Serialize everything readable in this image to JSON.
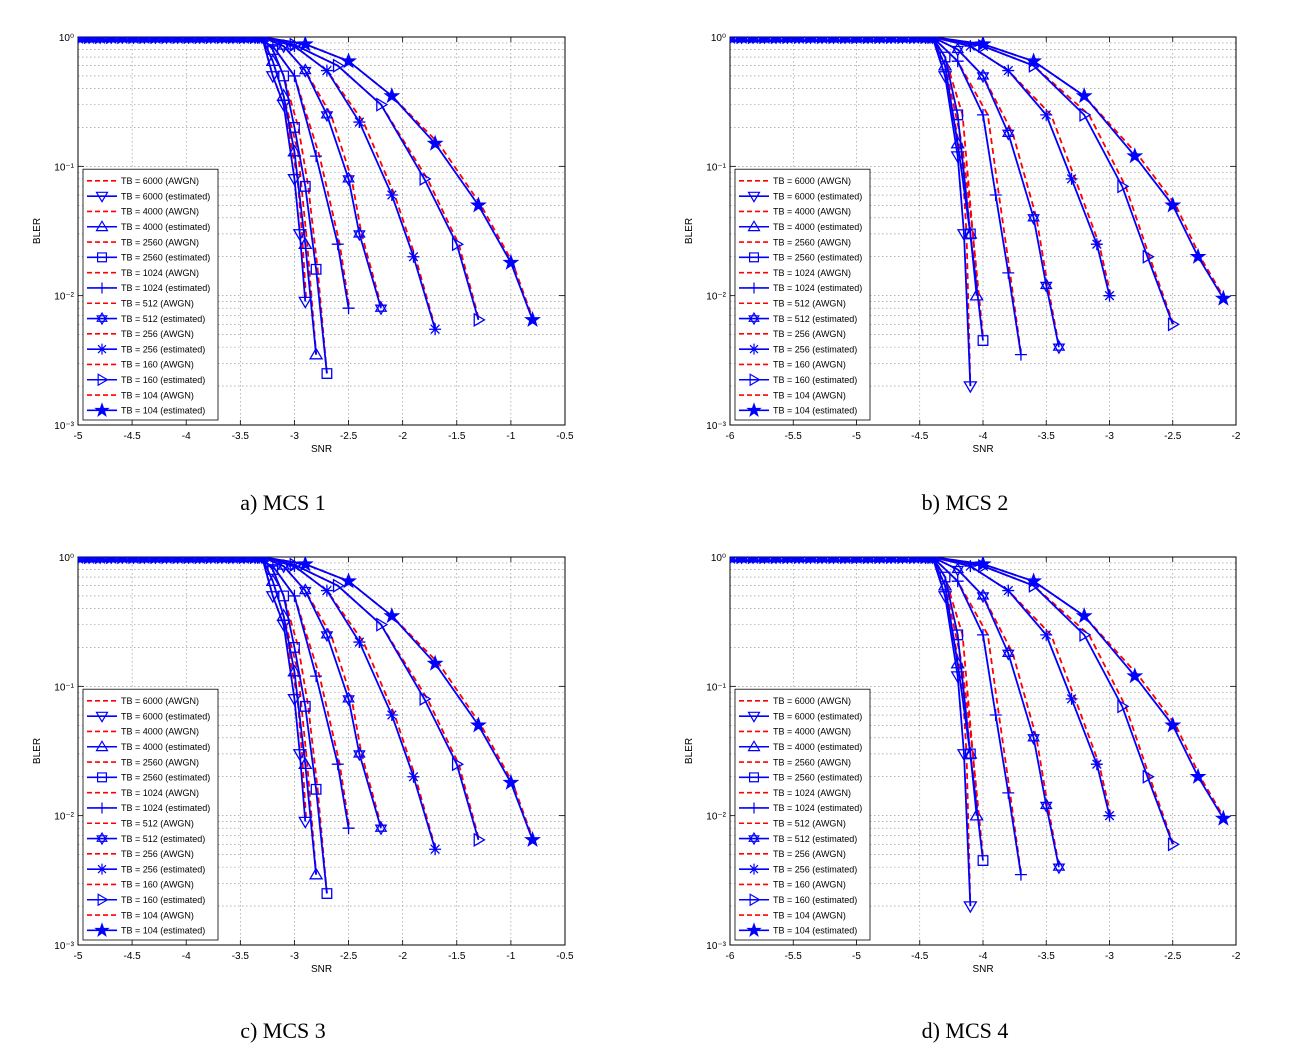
{
  "chart_data": [
    {
      "type": "line",
      "caption": "a) MCS 1",
      "xlabel": "SNR",
      "ylabel": "BLER",
      "yscale": "log",
      "xlim": [
        -5,
        -0.5
      ],
      "ylim": [
        0.001,
        1
      ],
      "xticks": [
        -5,
        -4.5,
        -4,
        -3.5,
        -3,
        -2.5,
        -2,
        -1.5,
        -1,
        -0.5
      ],
      "xtick_labels": [
        "-5",
        "-4.5",
        "-4",
        "-3.5",
        "-3",
        "-2.5",
        "-2",
        "-1.5",
        "-1",
        "-0.5"
      ],
      "ytick_labels": [
        "10⁻³",
        "10⁻²",
        "10⁻¹",
        "10⁰"
      ],
      "grid": true,
      "legend_position": "lower-left",
      "legend": [
        "TB = 6000 (AWGN)",
        "TB = 6000 (estimated)",
        "TB = 4000 (AWGN)",
        "TB = 4000 (estimated)",
        "TB = 2560 (AWGN)",
        "TB = 2560 (estimated)",
        "TB = 1024 (AWGN)",
        "TB = 1024 (estimated)",
        "TB = 512 (AWGN)",
        "TB = 512 (estimated)",
        "TB = 256 (AWGN)",
        "TB = 256 (estimated)",
        "TB = 160 (AWGN)",
        "TB = 160 (estimated)",
        "TB = 104 (AWGN)",
        "TB = 104 (estimated)"
      ],
      "series": [
        {
          "tb": "6000",
          "marker": "tri-down",
          "x": [
            -3.3,
            -3.2,
            -3.1,
            -3.0,
            -2.95,
            -2.9
          ],
          "y": [
            1.0,
            0.5,
            0.3,
            0.08,
            0.03,
            0.009
          ]
        },
        {
          "tb": "4000",
          "marker": "tri-up",
          "x": [
            -3.3,
            -3.2,
            -3.1,
            -3.0,
            -2.9,
            -2.8
          ],
          "y": [
            1.0,
            0.65,
            0.35,
            0.13,
            0.025,
            0.0035
          ]
        },
        {
          "tb": "2560",
          "marker": "square",
          "x": [
            -3.3,
            -3.2,
            -3.1,
            -3.0,
            -2.9,
            -2.8,
            -2.7
          ],
          "y": [
            1.0,
            0.8,
            0.5,
            0.2,
            0.07,
            0.016,
            0.0025
          ]
        },
        {
          "tb": "1024",
          "marker": "plus",
          "x": [
            -3.4,
            -3.2,
            -3.0,
            -2.8,
            -2.6,
            -2.5
          ],
          "y": [
            1.0,
            0.85,
            0.5,
            0.12,
            0.025,
            0.008
          ]
        },
        {
          "tb": "512",
          "marker": "hexstar",
          "x": [
            -3.3,
            -3.1,
            -2.9,
            -2.7,
            -2.5,
            -2.4,
            -2.2
          ],
          "y": [
            1.0,
            0.85,
            0.55,
            0.25,
            0.08,
            0.03,
            0.008
          ]
        },
        {
          "tb": "256",
          "marker": "asterisk",
          "x": [
            -3.3,
            -3.0,
            -2.7,
            -2.4,
            -2.1,
            -1.9,
            -1.7
          ],
          "y": [
            1.0,
            0.85,
            0.55,
            0.22,
            0.06,
            0.02,
            0.0055
          ]
        },
        {
          "tb": "160",
          "marker": "tri-right",
          "x": [
            -3.3,
            -3.0,
            -2.6,
            -2.2,
            -1.8,
            -1.5,
            -1.3
          ],
          "y": [
            1.0,
            0.87,
            0.6,
            0.3,
            0.08,
            0.025,
            0.0065
          ]
        },
        {
          "tb": "104",
          "marker": "star",
          "x": [
            -3.3,
            -2.9,
            -2.5,
            -2.1,
            -1.7,
            -1.3,
            -1.0,
            -0.8
          ],
          "y": [
            1.0,
            0.88,
            0.65,
            0.35,
            0.15,
            0.05,
            0.018,
            0.0065
          ]
        }
      ]
    },
    {
      "type": "line",
      "caption": "b) MCS 2",
      "xlabel": "SNR",
      "ylabel": "BLER",
      "yscale": "log",
      "xlim": [
        -6,
        -2
      ],
      "ylim": [
        0.001,
        1
      ],
      "xticks": [
        -6,
        -5.5,
        -5,
        -4.5,
        -4,
        -3.5,
        -3,
        -2.5,
        -2
      ],
      "xtick_labels": [
        "-6",
        "-5.5",
        "-5",
        "-4.5",
        "-4",
        "-3.5",
        "-3",
        "-2.5",
        "-2"
      ],
      "ytick_labels": [
        "10⁻³",
        "10⁻²",
        "10⁻¹",
        "10⁰"
      ],
      "grid": true,
      "legend_position": "lower-left",
      "legend": [
        "TB = 6000 (AWGN)",
        "TB = 6000 (estimated)",
        "TB = 4000 (AWGN)",
        "TB = 4000 (estimated)",
        "TB = 2560 (AWGN)",
        "TB = 2560 (estimated)",
        "TB = 1024 (AWGN)",
        "TB = 1024 (estimated)",
        "TB = 512 (AWGN)",
        "TB = 512 (estimated)",
        "TB = 256 (AWGN)",
        "TB = 256 (estimated)",
        "TB = 160 (AWGN)",
        "TB = 160 (estimated)",
        "TB = 104 (AWGN)",
        "TB = 104 (estimated)"
      ],
      "series": [
        {
          "tb": "6000",
          "marker": "tri-down",
          "x": [
            -4.4,
            -4.3,
            -4.2,
            -4.15,
            -4.1
          ],
          "y": [
            1.0,
            0.5,
            0.12,
            0.03,
            0.002
          ]
        },
        {
          "tb": "4000",
          "marker": "tri-up",
          "x": [
            -4.4,
            -4.3,
            -4.2,
            -4.1,
            -4.05
          ],
          "y": [
            1.0,
            0.6,
            0.15,
            0.03,
            0.01
          ]
        },
        {
          "tb": "2560",
          "marker": "square",
          "x": [
            -4.4,
            -4.3,
            -4.2,
            -4.1,
            -4.0
          ],
          "y": [
            1.0,
            0.7,
            0.25,
            0.03,
            0.0045
          ]
        },
        {
          "tb": "1024",
          "marker": "plus",
          "x": [
            -4.4,
            -4.2,
            -4.0,
            -3.9,
            -3.8,
            -3.7
          ],
          "y": [
            1.0,
            0.65,
            0.25,
            0.06,
            0.015,
            0.0035
          ]
        },
        {
          "tb": "512",
          "marker": "hexstar",
          "x": [
            -4.4,
            -4.2,
            -4.0,
            -3.8,
            -3.6,
            -3.5,
            -3.4
          ],
          "y": [
            1.0,
            0.8,
            0.5,
            0.18,
            0.04,
            0.012,
            0.004
          ]
        },
        {
          "tb": "256",
          "marker": "asterisk",
          "x": [
            -4.4,
            -4.1,
            -3.8,
            -3.5,
            -3.3,
            -3.1,
            -3.0
          ],
          "y": [
            1.0,
            0.85,
            0.55,
            0.25,
            0.08,
            0.025,
            0.01
          ]
        },
        {
          "tb": "160",
          "marker": "tri-right",
          "x": [
            -4.4,
            -4.0,
            -3.6,
            -3.2,
            -2.9,
            -2.7,
            -2.5
          ],
          "y": [
            1.0,
            0.85,
            0.6,
            0.25,
            0.07,
            0.02,
            0.006
          ]
        },
        {
          "tb": "104",
          "marker": "star",
          "x": [
            -4.4,
            -4.0,
            -3.6,
            -3.2,
            -2.8,
            -2.5,
            -2.3,
            -2.1
          ],
          "y": [
            1.0,
            0.88,
            0.65,
            0.35,
            0.12,
            0.05,
            0.02,
            0.0095
          ]
        }
      ]
    },
    {
      "type": "line",
      "caption": "c) MCS 3",
      "xlabel": "SNR",
      "ylabel": "BLER",
      "yscale": "log",
      "xlim": [
        -5,
        -0.5
      ],
      "ylim": [
        0.001,
        1
      ],
      "xticks": [
        -5,
        -4.5,
        -4,
        -3.5,
        -3,
        -2.5,
        -2,
        -1.5,
        -1,
        -0.5
      ],
      "xtick_labels": [
        "-5",
        "-4.5",
        "-4",
        "-3.5",
        "-3",
        "-2.5",
        "-2",
        "-1.5",
        "-1",
        "-0.5"
      ],
      "ytick_labels": [
        "10⁻³",
        "10⁻²",
        "10⁻¹",
        "10⁰"
      ],
      "grid": true,
      "legend_position": "lower-left",
      "legend": [
        "TB = 6000 (AWGN)",
        "TB = 6000 (estimated)",
        "TB = 4000 (AWGN)",
        "TB = 4000 (estimated)",
        "TB = 2560 (AWGN)",
        "TB = 2560 (estimated)",
        "TB = 1024 (AWGN)",
        "TB = 1024 (estimated)",
        "TB = 512 (AWGN)",
        "TB = 512 (estimated)",
        "TB = 256 (AWGN)",
        "TB = 256 (estimated)",
        "TB = 160 (AWGN)",
        "TB = 160 (estimated)",
        "TB = 104 (AWGN)",
        "TB = 104 (estimated)"
      ],
      "series": [
        {
          "tb": "6000",
          "marker": "tri-down",
          "x": [
            -3.3,
            -3.2,
            -3.1,
            -3.0,
            -2.95,
            -2.9
          ],
          "y": [
            1.0,
            0.5,
            0.3,
            0.08,
            0.03,
            0.009
          ]
        },
        {
          "tb": "4000",
          "marker": "tri-up",
          "x": [
            -3.3,
            -3.2,
            -3.1,
            -3.0,
            -2.9,
            -2.8
          ],
          "y": [
            1.0,
            0.65,
            0.35,
            0.13,
            0.025,
            0.0035
          ]
        },
        {
          "tb": "2560",
          "marker": "square",
          "x": [
            -3.3,
            -3.2,
            -3.1,
            -3.0,
            -2.9,
            -2.8,
            -2.7
          ],
          "y": [
            1.0,
            0.8,
            0.5,
            0.2,
            0.07,
            0.016,
            0.0025
          ]
        },
        {
          "tb": "1024",
          "marker": "plus",
          "x": [
            -3.4,
            -3.2,
            -3.0,
            -2.8,
            -2.6,
            -2.5
          ],
          "y": [
            1.0,
            0.85,
            0.5,
            0.12,
            0.025,
            0.008
          ]
        },
        {
          "tb": "512",
          "marker": "hexstar",
          "x": [
            -3.3,
            -3.1,
            -2.9,
            -2.7,
            -2.5,
            -2.4,
            -2.2
          ],
          "y": [
            1.0,
            0.85,
            0.55,
            0.25,
            0.08,
            0.03,
            0.008
          ]
        },
        {
          "tb": "256",
          "marker": "asterisk",
          "x": [
            -3.3,
            -3.0,
            -2.7,
            -2.4,
            -2.1,
            -1.9,
            -1.7
          ],
          "y": [
            1.0,
            0.85,
            0.55,
            0.22,
            0.06,
            0.02,
            0.0055
          ]
        },
        {
          "tb": "160",
          "marker": "tri-right",
          "x": [
            -3.3,
            -3.0,
            -2.6,
            -2.2,
            -1.8,
            -1.5,
            -1.3
          ],
          "y": [
            1.0,
            0.87,
            0.6,
            0.3,
            0.08,
            0.025,
            0.0065
          ]
        },
        {
          "tb": "104",
          "marker": "star",
          "x": [
            -3.3,
            -2.9,
            -2.5,
            -2.1,
            -1.7,
            -1.3,
            -1.0,
            -0.8
          ],
          "y": [
            1.0,
            0.88,
            0.65,
            0.35,
            0.15,
            0.05,
            0.018,
            0.0065
          ]
        }
      ]
    },
    {
      "type": "line",
      "caption": "d) MCS 4",
      "xlabel": "SNR",
      "ylabel": "BLER",
      "yscale": "log",
      "xlim": [
        -6,
        -2
      ],
      "ylim": [
        0.001,
        1
      ],
      "xticks": [
        -6,
        -5.5,
        -5,
        -4.5,
        -4,
        -3.5,
        -3,
        -2.5,
        -2
      ],
      "xtick_labels": [
        "-6",
        "-5.5",
        "-5",
        "-4.5",
        "-4",
        "-3.5",
        "-3",
        "-2.5",
        "-2"
      ],
      "ytick_labels": [
        "10⁻³",
        "10⁻²",
        "10⁻¹",
        "10⁰"
      ],
      "grid": true,
      "legend_position": "lower-left",
      "legend": [
        "TB = 6000 (AWGN)",
        "TB = 6000 (estimated)",
        "TB = 4000 (AWGN)",
        "TB = 4000 (estimated)",
        "TB = 2560 (AWGN)",
        "TB = 2560 (estimated)",
        "TB = 1024 (AWGN)",
        "TB = 1024 (estimated)",
        "TB = 512 (AWGN)",
        "TB = 512 (estimated)",
        "TB = 256 (AWGN)",
        "TB = 256 (estimated)",
        "TB = 160 (AWGN)",
        "TB = 160 (estimated)",
        "TB = 104 (AWGN)",
        "TB = 104 (estimated)"
      ],
      "series": [
        {
          "tb": "6000",
          "marker": "tri-down",
          "x": [
            -4.4,
            -4.3,
            -4.2,
            -4.15,
            -4.1
          ],
          "y": [
            1.0,
            0.5,
            0.12,
            0.03,
            0.002
          ]
        },
        {
          "tb": "4000",
          "marker": "tri-up",
          "x": [
            -4.4,
            -4.3,
            -4.2,
            -4.1,
            -4.05
          ],
          "y": [
            1.0,
            0.6,
            0.15,
            0.03,
            0.01
          ]
        },
        {
          "tb": "2560",
          "marker": "square",
          "x": [
            -4.4,
            -4.3,
            -4.2,
            -4.1,
            -4.0
          ],
          "y": [
            1.0,
            0.7,
            0.25,
            0.03,
            0.0045
          ]
        },
        {
          "tb": "1024",
          "marker": "plus",
          "x": [
            -4.4,
            -4.2,
            -4.0,
            -3.9,
            -3.8,
            -3.7
          ],
          "y": [
            1.0,
            0.65,
            0.25,
            0.06,
            0.015,
            0.0035
          ]
        },
        {
          "tb": "512",
          "marker": "hexstar",
          "x": [
            -4.4,
            -4.2,
            -4.0,
            -3.8,
            -3.6,
            -3.5,
            -3.4
          ],
          "y": [
            1.0,
            0.8,
            0.5,
            0.18,
            0.04,
            0.012,
            0.004
          ]
        },
        {
          "tb": "256",
          "marker": "asterisk",
          "x": [
            -4.4,
            -4.1,
            -3.8,
            -3.5,
            -3.3,
            -3.1,
            -3.0
          ],
          "y": [
            1.0,
            0.85,
            0.55,
            0.25,
            0.08,
            0.025,
            0.01
          ]
        },
        {
          "tb": "160",
          "marker": "tri-right",
          "x": [
            -4.4,
            -4.0,
            -3.6,
            -3.2,
            -2.9,
            -2.7,
            -2.5
          ],
          "y": [
            1.0,
            0.85,
            0.6,
            0.25,
            0.07,
            0.02,
            0.006
          ]
        },
        {
          "tb": "104",
          "marker": "star",
          "x": [
            -4.4,
            -4.0,
            -3.6,
            -3.2,
            -2.8,
            -2.5,
            -2.3,
            -2.1
          ],
          "y": [
            1.0,
            0.88,
            0.65,
            0.35,
            0.12,
            0.05,
            0.02,
            0.0095
          ]
        }
      ]
    }
  ],
  "colors": {
    "estimated": "#0000ff",
    "awgn": "#ff0000",
    "grid": "#888888",
    "axis": "#000000"
  }
}
